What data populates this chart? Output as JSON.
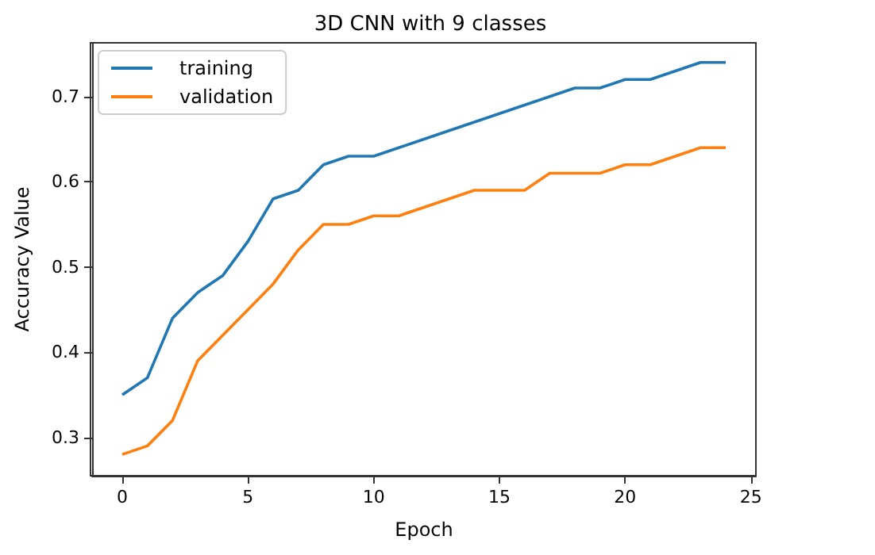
{
  "chart_data": {
    "type": "line",
    "title": "3D CNN with 9 classes",
    "xlabel": "Epoch",
    "ylabel": "Accuracy Value",
    "x": [
      0,
      1,
      2,
      3,
      4,
      5,
      6,
      7,
      8,
      9,
      10,
      11,
      12,
      13,
      14,
      15,
      16,
      17,
      18,
      19,
      20,
      21,
      22,
      23,
      24
    ],
    "series": [
      {
        "name": "training",
        "color": "#1f77b4",
        "values": [
          0.35,
          0.37,
          0.44,
          0.47,
          0.49,
          0.53,
          0.58,
          0.59,
          0.62,
          0.63,
          0.63,
          0.64,
          0.65,
          0.66,
          0.67,
          0.68,
          0.69,
          0.7,
          0.71,
          0.71,
          0.72,
          0.72,
          0.73,
          0.74,
          0.74
        ]
      },
      {
        "name": "validation",
        "color": "#ff7f0e",
        "values": [
          0.28,
          0.29,
          0.32,
          0.39,
          0.42,
          0.45,
          0.48,
          0.52,
          0.55,
          0.55,
          0.56,
          0.56,
          0.57,
          0.58,
          0.59,
          0.59,
          0.59,
          0.61,
          0.61,
          0.61,
          0.62,
          0.62,
          0.63,
          0.64,
          0.64
        ]
      }
    ],
    "xlim": [
      -1.2,
      25.2
    ],
    "xticks": [
      0,
      5,
      10,
      15,
      20,
      25
    ],
    "ylim": [
      0.255,
      0.763
    ],
    "yticks": [
      0.3,
      0.4,
      0.5,
      0.6,
      0.7
    ],
    "grid": false,
    "legend": "top left",
    "marker": "none",
    "line_style": "solid"
  }
}
